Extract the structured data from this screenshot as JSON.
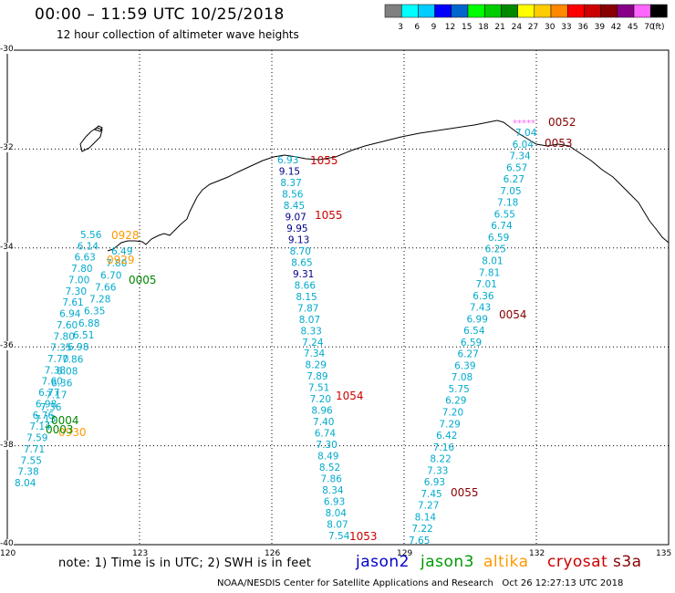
{
  "header": {
    "title": "00:00 – 11:59 UTC 10/25/2018",
    "subtitle": "12 hour collection of altimeter wave heights"
  },
  "legend_scale": {
    "labels": [
      "3",
      "6",
      "9",
      "12",
      "15",
      "18",
      "21",
      "24",
      "27",
      "30",
      "33",
      "36",
      "39",
      "42",
      "45",
      "70"
    ],
    "unit": "(ft)",
    "colors": [
      "#808080",
      "#00ffff",
      "#00ccff",
      "#0000ff",
      "#0066cc",
      "#00ff00",
      "#00cc00",
      "#008800",
      "#ffff00",
      "#ffcc00",
      "#ff8800",
      "#ff0000",
      "#cc0000",
      "#880000",
      "#880088",
      "#ff66ff",
      "#000000"
    ]
  },
  "axes": {
    "lat_labels": [
      "-30",
      "-32",
      "-34",
      "-36",
      "-38",
      "-40"
    ],
    "lon_labels": [
      "120",
      "123",
      "126",
      "129",
      "132",
      "135"
    ]
  },
  "footer": {
    "note": "note: 1) Time is in UTC; 2) SWH is in feet",
    "satellites": [
      {
        "name": "jason2",
        "color": "#0000cc"
      },
      {
        "name": "jason3",
        "color": "#009900"
      },
      {
        "name": "altika",
        "color": "#ff9900"
      },
      {
        "name": "cryosat",
        "color": "#cc0000"
      },
      {
        "name": "s3a",
        "color": "#880000"
      }
    ],
    "credit": "NOAA/NESDIS Center for Satellite Applications and Research",
    "generated": "Oct 26 12:27:13 UTC 2018"
  },
  "tracks": {
    "track_west": {
      "values": [
        "5.56",
        "6.14",
        "6.63",
        "7.80",
        "7.00",
        "7.30",
        "7.61",
        "6.94",
        "7.60",
        "7.80",
        "7.35",
        "7.70",
        "7.38",
        "7.60",
        "6.77",
        "6.98",
        "6.76",
        "7.14",
        "7.59",
        "7.71",
        "7.55",
        "7.38",
        "8.04"
      ],
      "color": "#00aacc"
    },
    "track_west_inner": {
      "values": [
        "6.49",
        "7.80",
        "6.70",
        "7.66",
        "7.28",
        "6.35",
        "6.88",
        "6.51",
        "6.98",
        "7.86",
        "6.08",
        "6.36",
        "7.17",
        "7.36",
        "7.13"
      ],
      "color": "#00aacc"
    },
    "track_center": {
      "values": [
        "6.93",
        "9.15",
        "8.37",
        "8.56",
        "8.45",
        "9.07",
        "9.95",
        "9.13",
        "8.70",
        "8.65",
        "9.31",
        "8.66",
        "8.15",
        "7.87",
        "8.07",
        "8.33",
        "7.24",
        "7.34",
        "8.29",
        "7.89",
        "7.51",
        "7.20",
        "8.96",
        "7.40",
        "6.74",
        "7.30",
        "8.49",
        "8.52",
        "7.86",
        "8.34",
        "6.93",
        "8.04",
        "8.07",
        "7.54"
      ],
      "dark": [
        "9.15",
        "9.07",
        "9.95",
        "9.13",
        "9.31"
      ]
    },
    "track_east": {
      "values": [
        "7.04",
        "6.04",
        "7.34",
        "6.57",
        "6.27",
        "7.05",
        "7.18",
        "6.55",
        "6.74",
        "6.59",
        "6.25",
        "8.01",
        "7.81",
        "7.01",
        "6.36",
        "7.43",
        "6.99",
        "6.54",
        "6.59",
        "6.27",
        "6.39",
        "7.08",
        "5.75",
        "6.29",
        "7.20",
        "7.29",
        "6.42",
        "7.16",
        "8.22",
        "7.33",
        "6.93",
        "7.45",
        "7.27",
        "8.14",
        "7.22",
        "7.65"
      ],
      "asterisks": "*****"
    }
  },
  "time_labels": [
    {
      "text": "0052",
      "color": "#880000"
    },
    {
      "text": "0053",
      "color": "#880000"
    },
    {
      "text": "0054",
      "color": "#880000"
    },
    {
      "text": "0055",
      "color": "#880000"
    },
    {
      "text": "1055",
      "color": "#cc0000"
    },
    {
      "text": "1055",
      "color": "#cc0000"
    },
    {
      "text": "1054",
      "color": "#cc0000"
    },
    {
      "text": "1053",
      "color": "#cc0000"
    },
    {
      "text": "0928",
      "color": "#ff9900"
    },
    {
      "text": "0929",
      "color": "#ff9900"
    },
    {
      "text": "0930",
      "color": "#ff9900"
    },
    {
      "text": "0005",
      "color": "#008800"
    },
    {
      "text": "0004",
      "color": "#008800"
    },
    {
      "text": "0003",
      "color": "#008800"
    }
  ]
}
